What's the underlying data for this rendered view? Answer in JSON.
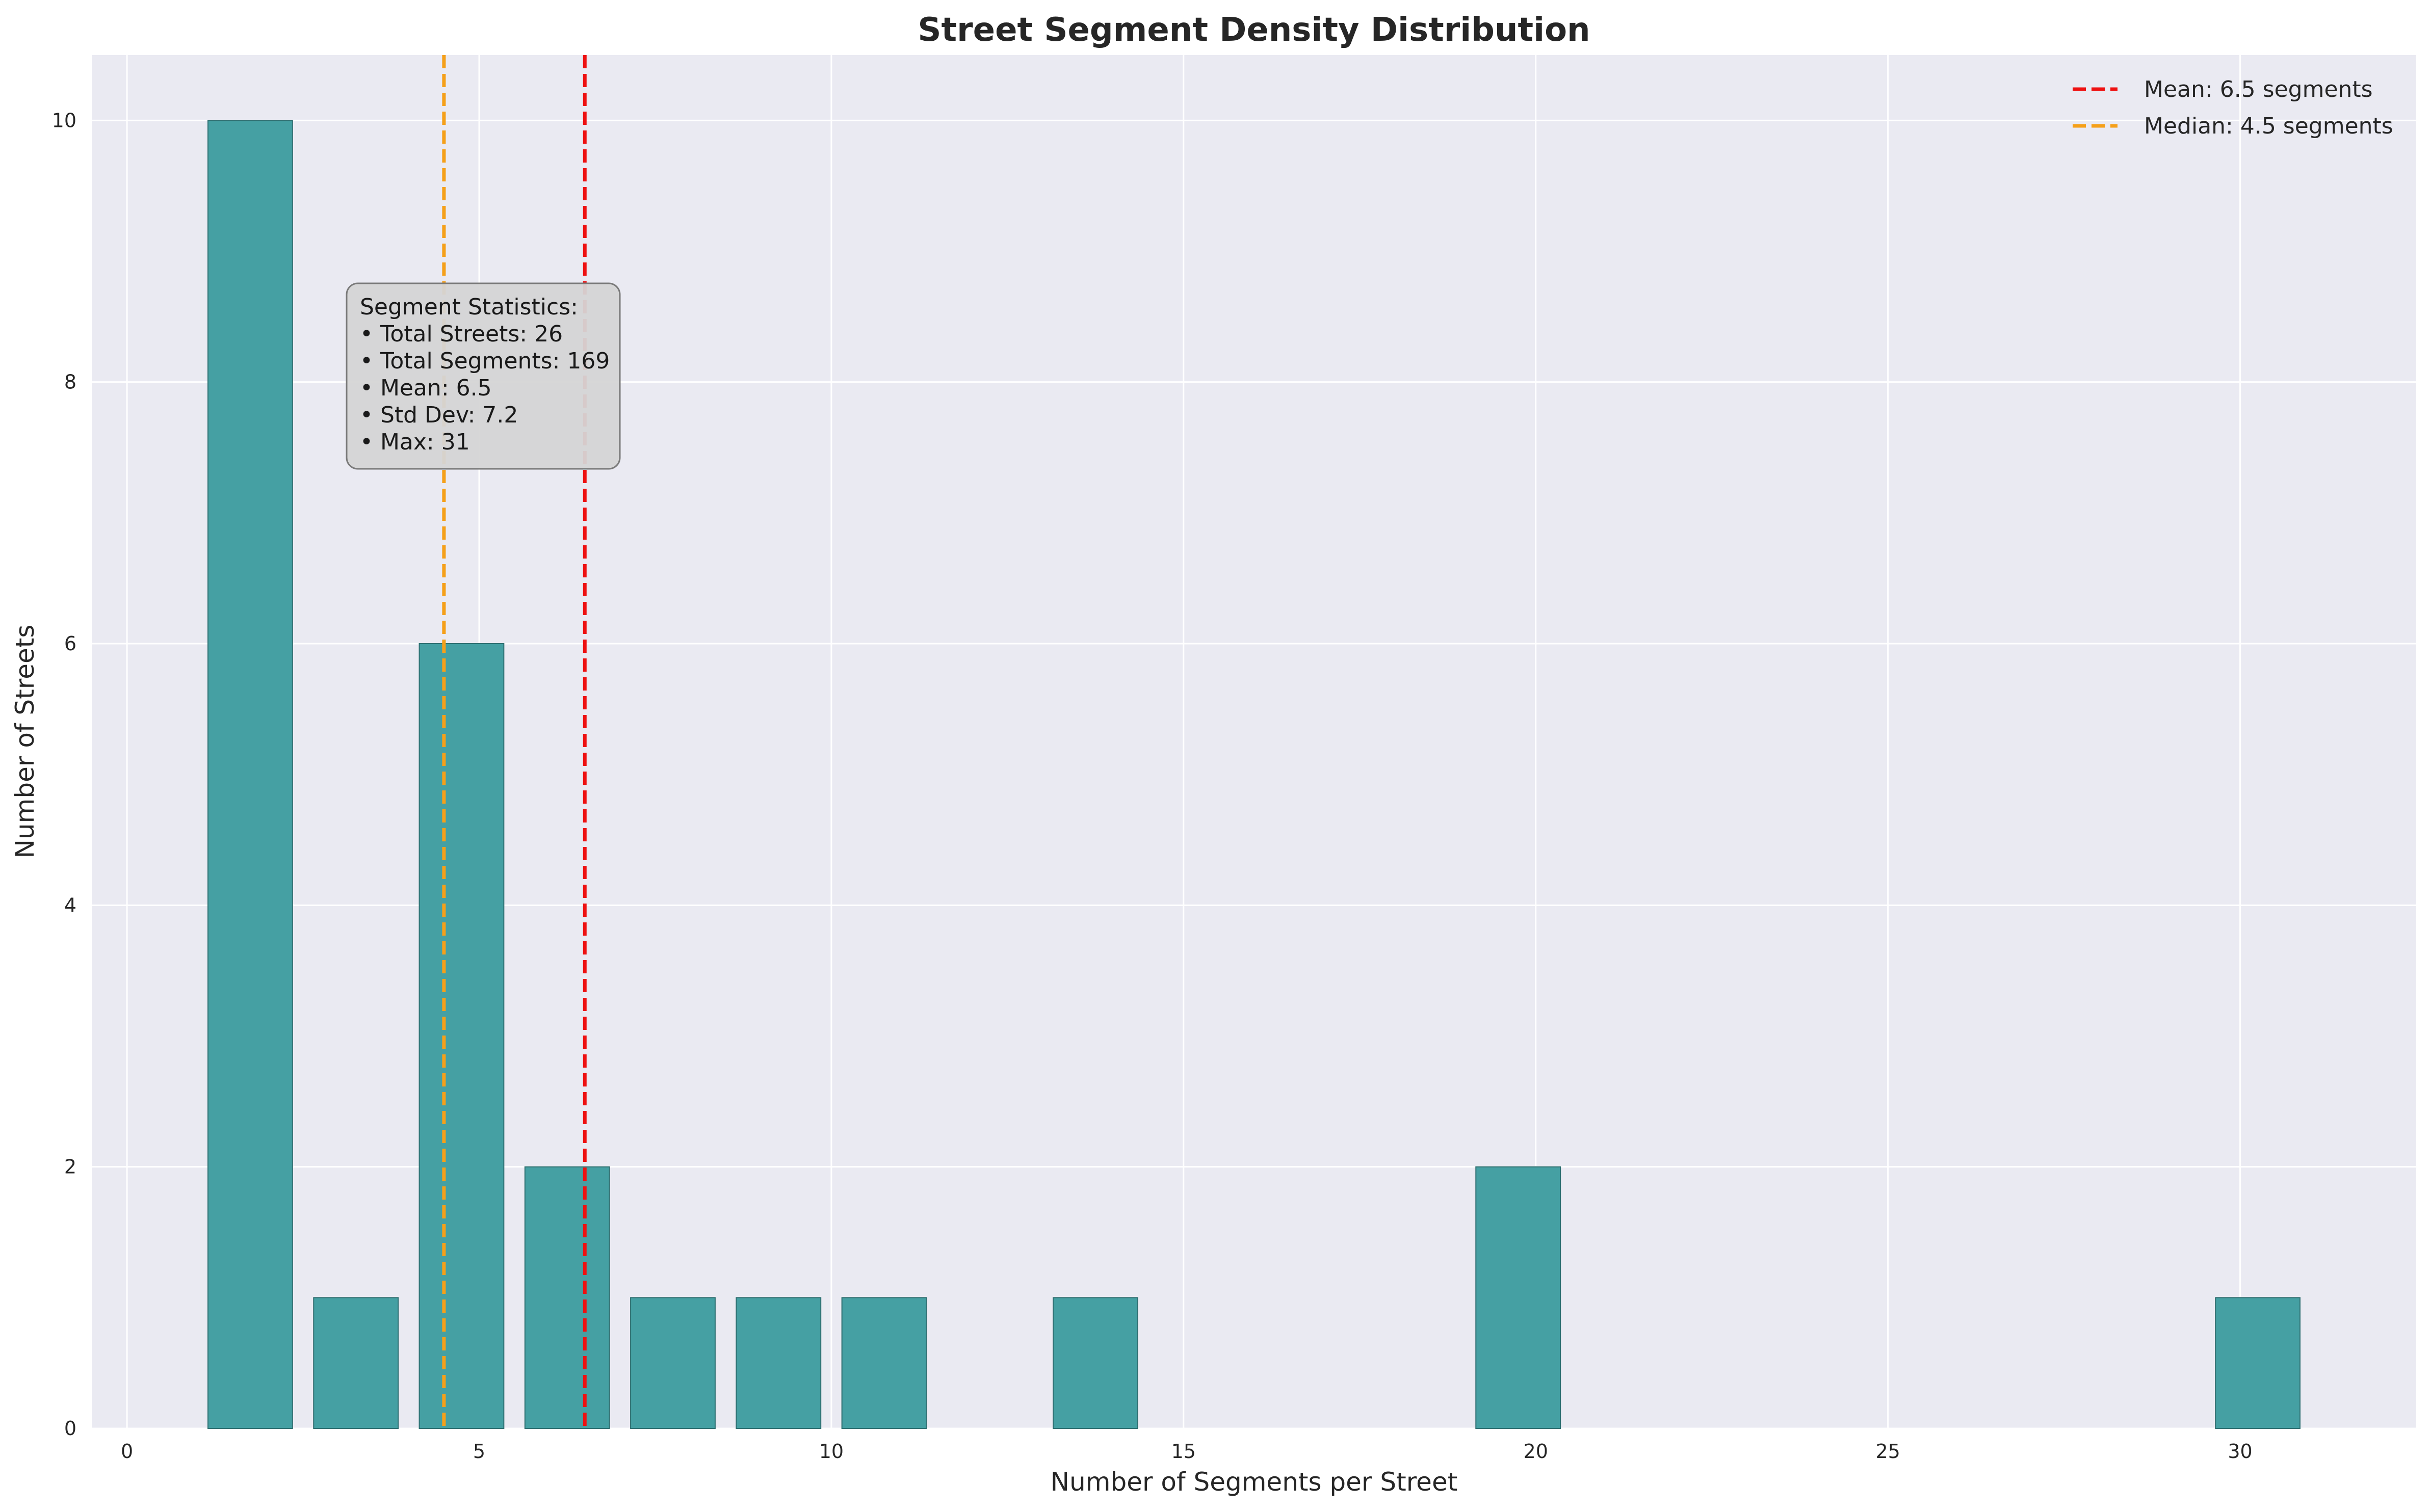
{
  "chart_data": {
    "type": "bar",
    "title": "Street Segment Density Distribution",
    "xlabel": "Number of Segments per Street",
    "ylabel": "Number of Streets",
    "xlim": [
      -0.5,
      32.5
    ],
    "ylim": [
      0,
      10.5
    ],
    "xticks": [
      0,
      5,
      10,
      15,
      20,
      25,
      30
    ],
    "yticks": [
      0,
      2,
      4,
      6,
      8,
      10
    ],
    "grid": true,
    "bin_width": 1.5,
    "bars": [
      {
        "x": 1.75,
        "value": 10
      },
      {
        "x": 3.25,
        "value": 1
      },
      {
        "x": 4.75,
        "value": 6
      },
      {
        "x": 6.25,
        "value": 2
      },
      {
        "x": 7.75,
        "value": 1
      },
      {
        "x": 9.25,
        "value": 1
      },
      {
        "x": 10.75,
        "value": 1
      },
      {
        "x": 13.75,
        "value": 1
      },
      {
        "x": 19.75,
        "value": 2
      },
      {
        "x": 30.25,
        "value": 1
      }
    ],
    "reference_lines": [
      {
        "name": "Mean: 6.5 segments",
        "x": 6.5,
        "color": "#ee1111"
      },
      {
        "name": "Median: 4.5 segments",
        "x": 4.5,
        "color": "#f5a01a"
      }
    ],
    "legend_position": "top-right",
    "annotation": {
      "lines": [
        "Segment Statistics:",
        "• Total Streets: 26",
        "• Total Segments: 169",
        "• Mean: 6.5",
        "• Std Dev: 7.2",
        "• Max: 31"
      ]
    },
    "colors": {
      "bar": "#45a0a3",
      "bar_edge": "#2e6f71",
      "plot_bg": "#eaeaf2",
      "grid": "#ffffff"
    }
  }
}
